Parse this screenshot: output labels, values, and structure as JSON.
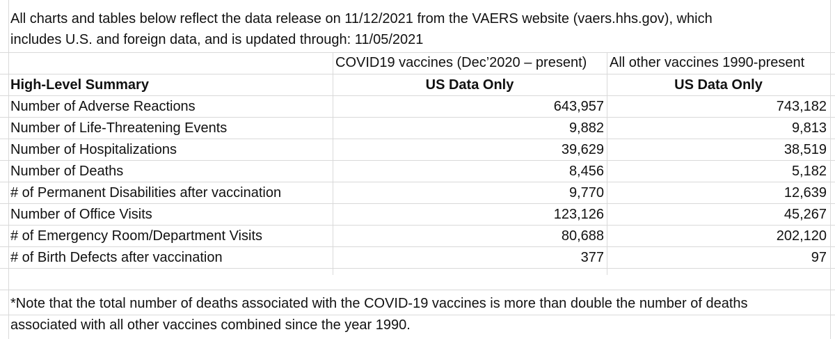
{
  "intro": {
    "line1": "All charts and tables below reflect the data release on 11/12/2021 from the VAERS website (vaers.hhs.gov), which",
    "line2": "includes U.S. and foreign data, and is updated through: 11/05/2021"
  },
  "columns": {
    "covid_title": "COVID19 vaccines (Dec’2020 – present)",
    "other_title": "All other vaccines 1990-present",
    "summary_header": "High-Level Summary",
    "covid_sub": "US Data Only",
    "other_sub": "US Data Only"
  },
  "rows": [
    {
      "label": "Number of Adverse Reactions",
      "covid": "643,957",
      "other": "743,182"
    },
    {
      "label": "Number of Life-Threatening Events",
      "covid": "9,882",
      "other": "9,813"
    },
    {
      "label": "Number of Hospitalizations",
      "covid": "39,629",
      "other": "38,519"
    },
    {
      "label": "Number of Deaths",
      "covid": "8,456",
      "other": "5,182"
    },
    {
      "label": "# of Permanent Disabilities after vaccination",
      "covid": "9,770",
      "other": "12,639"
    },
    {
      "label": "Number of Office Visits",
      "covid": "123,126",
      "other": "45,267"
    },
    {
      "label": "# of Emergency Room/Department Visits",
      "covid": "80,688",
      "other": "202,120"
    },
    {
      "label": "# of Birth Defects after vaccination",
      "covid": "377",
      "other": "97"
    }
  ],
  "note": {
    "line1": "*Note that the total number of deaths associated with the COVID-19 vaccines is more than double the number of deaths",
    "line2": "associated with all other vaccines combined since the year 1990."
  }
}
